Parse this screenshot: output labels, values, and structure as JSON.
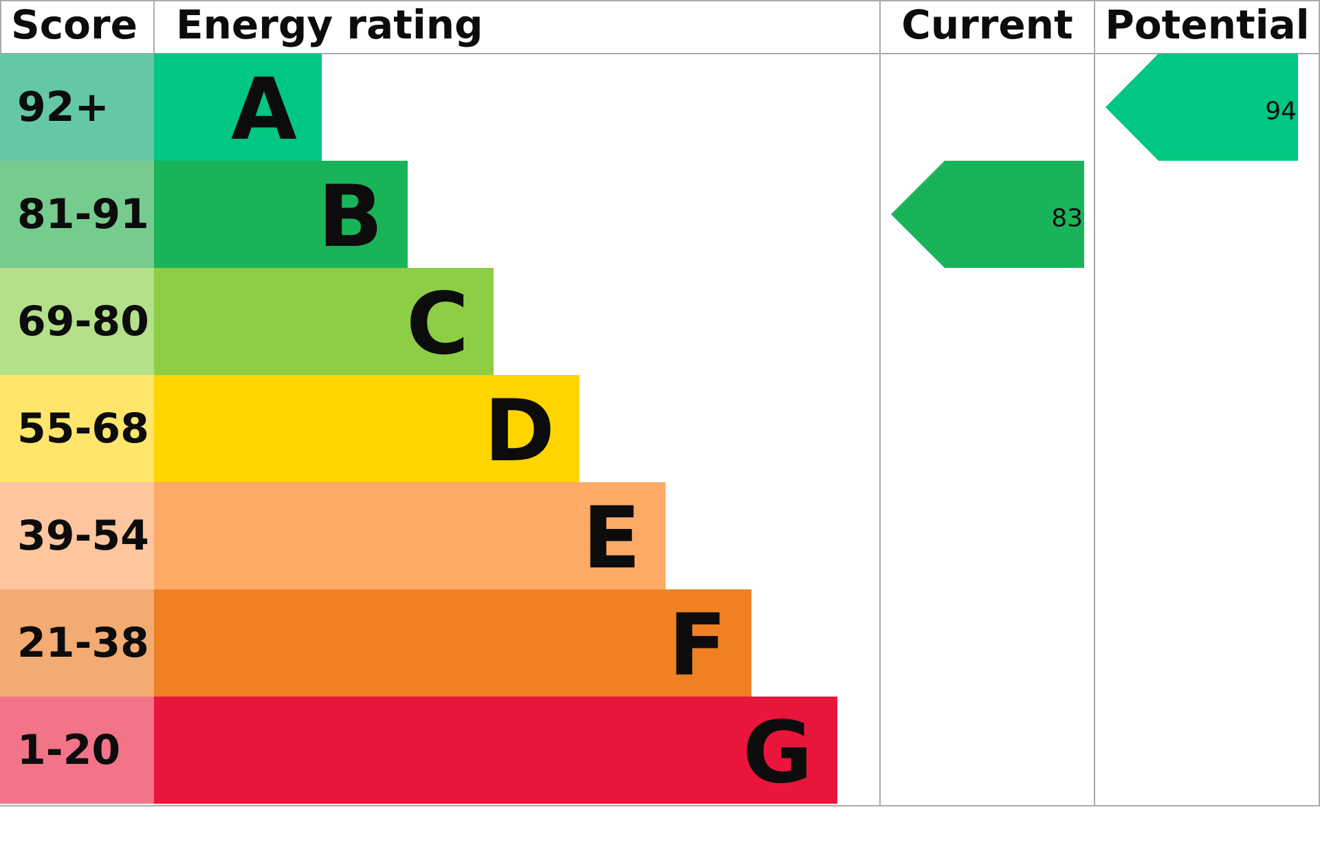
{
  "header": {
    "score": "Score",
    "rating": "Energy rating",
    "current": "Current",
    "potential": "Potential"
  },
  "bands": [
    {
      "score": "92+",
      "letter": "A",
      "color": "#00c781",
      "score_color": "#64c8a6"
    },
    {
      "score": "81-91",
      "letter": "B",
      "color": "#19b459",
      "score_color": "#76cc8e"
    },
    {
      "score": "69-80",
      "letter": "C",
      "color": "#8dce46",
      "score_color": "#b4e08a"
    },
    {
      "score": "55-68",
      "letter": "D",
      "color": "#ffd500",
      "score_color": "#ffe66b"
    },
    {
      "score": "39-54",
      "letter": "E",
      "color": "#fcaa65",
      "score_color": "#fdc69f"
    },
    {
      "score": "21-38",
      "letter": "F",
      "color": "#ef8023",
      "score_color": "#f4ab72"
    },
    {
      "score": "1-20",
      "letter": "G",
      "color": "#e9153b",
      "score_color": "#f27489"
    }
  ],
  "current": {
    "value": 83,
    "color": "#19b459"
  },
  "potential": {
    "value": 94,
    "color": "#00c781"
  }
}
